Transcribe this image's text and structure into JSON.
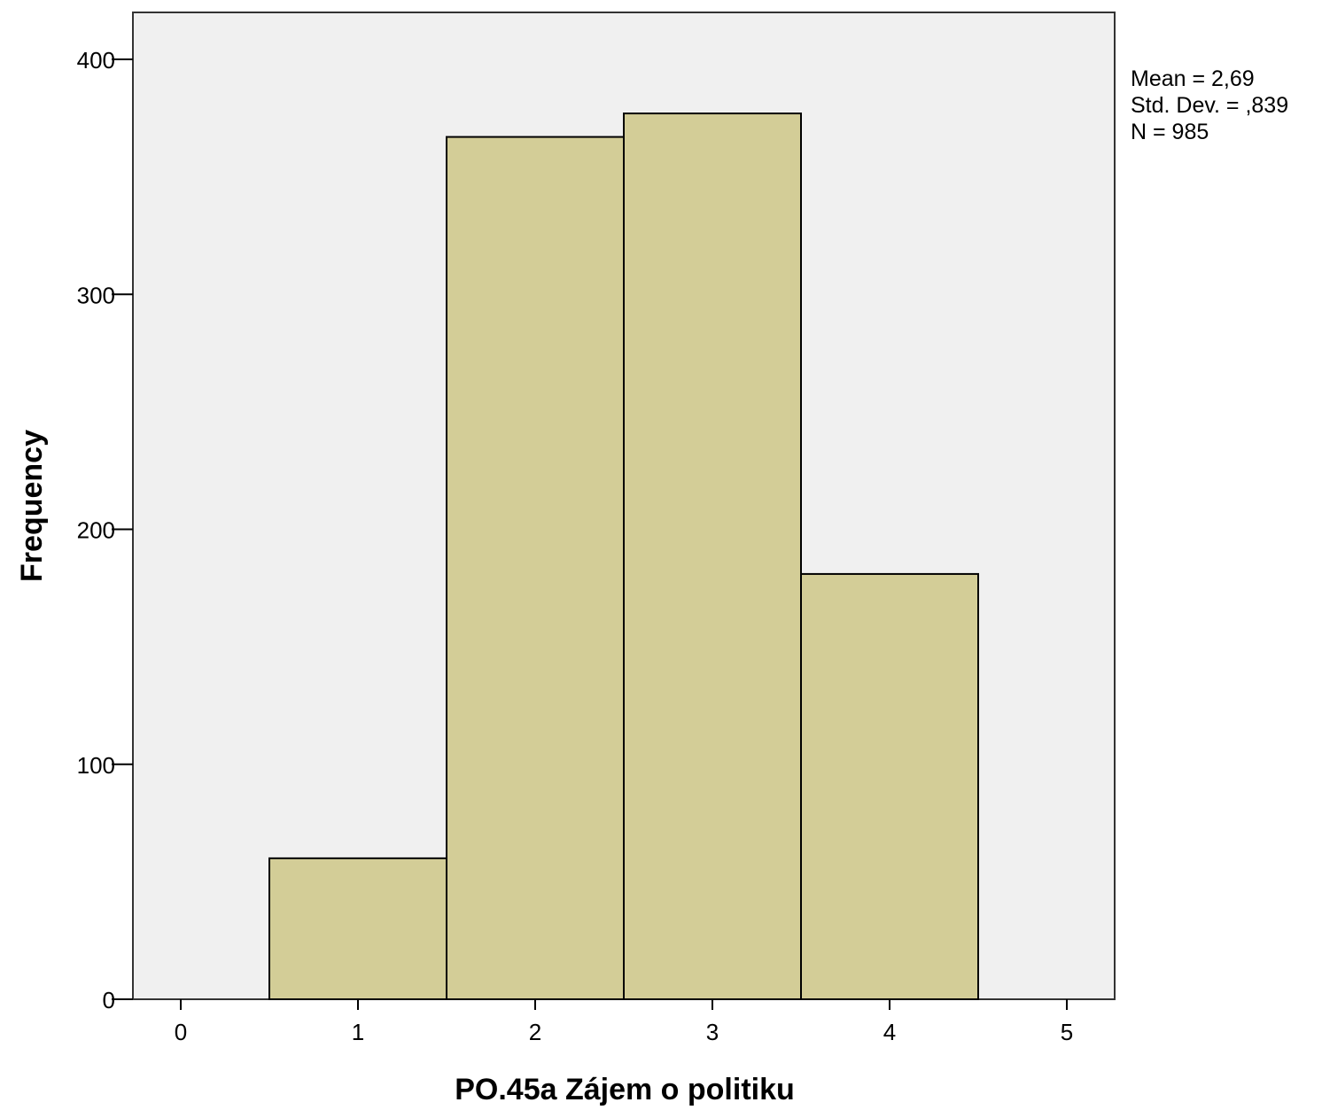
{
  "chart_data": {
    "type": "bar",
    "title": "",
    "xlabel": "PO.45a Zájem o politiku",
    "ylabel": "Frequency",
    "xlim": [
      -0.27,
      5.27
    ],
    "ylim": [
      0,
      420
    ],
    "x_ticks": [
      "0",
      "1",
      "2",
      "3",
      "4",
      "5"
    ],
    "y_ticks": [
      "0",
      "100",
      "200",
      "300",
      "400"
    ],
    "bins": [
      {
        "x": 1,
        "value": 60
      },
      {
        "x": 2,
        "value": 367
      },
      {
        "x": 3,
        "value": 377
      },
      {
        "x": 4,
        "value": 181
      }
    ],
    "bar_color": "#d3cd97",
    "plot_background": "#f0f0f0",
    "grid": false,
    "stats": [
      "Mean = 2,69",
      "Std. Dev. = ,839",
      "N = 985"
    ]
  }
}
